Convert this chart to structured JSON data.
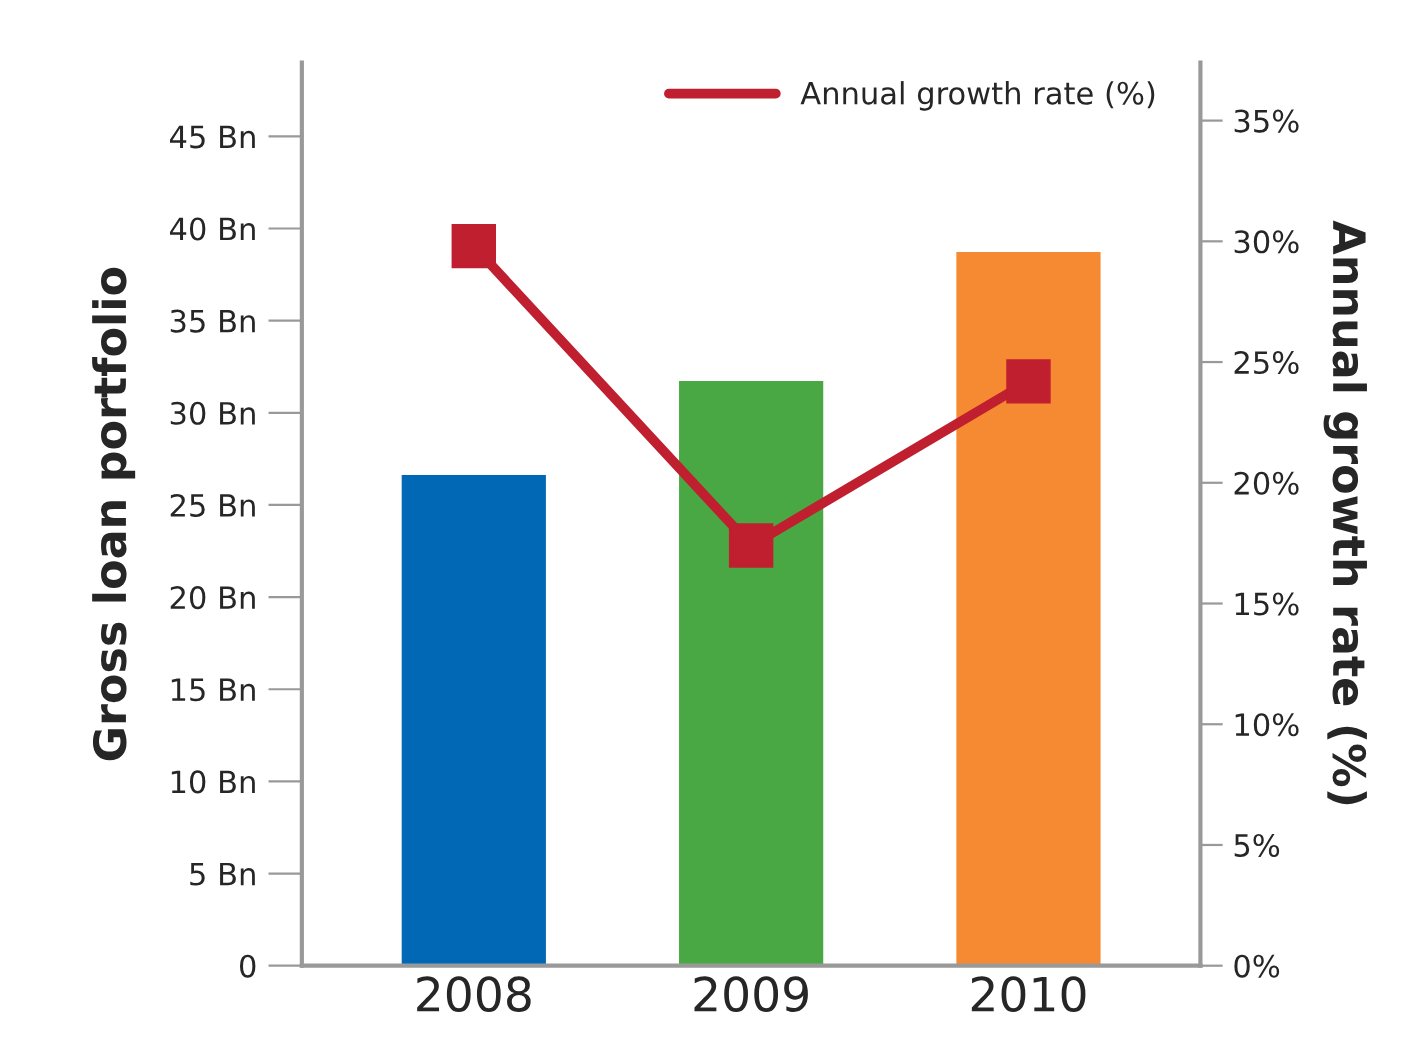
{
  "chart_data": {
    "type": "bar",
    "categories": [
      "2008",
      "2009",
      "2010"
    ],
    "ylabel": "Gross loan portfolio",
    "y2label": "Annual growth rate (%)",
    "series": [
      {
        "colors": [
          "#0068b4",
          "#4aa844",
          "#f68a32"
        ],
        "values": [
          26.7,
          31.8,
          38.8
        ]
      },
      {
        "type": "line",
        "name": "Annual growth rate (%)",
        "color": "#c01f2f",
        "axis": "y2",
        "marker": "square",
        "values": [
          29.8,
          17.4,
          24.2
        ]
      }
    ],
    "ylim": [
      0,
      49
    ],
    "yticks": [
      0,
      {
        "value": 5,
        "label": "5 Bn"
      },
      {
        "value": 10,
        "label": "10 Bn"
      },
      {
        "value": 15,
        "label": "15 Bn"
      },
      {
        "value": 20,
        "label": "20 Bn"
      },
      {
        "value": 25,
        "label": "25 Bn"
      },
      {
        "value": 30,
        "label": "30 Bn"
      },
      {
        "value": 35,
        "label": "35 Bn"
      },
      {
        "value": 40,
        "label": "40 Bn"
      },
      {
        "value": 45,
        "label": "45 Bn"
      }
    ],
    "y2lim": [
      0,
      37.4
    ],
    "y2ticks": [
      {
        "value": 0,
        "label": "0%"
      },
      {
        "value": 5,
        "label": "5%"
      },
      {
        "value": 10,
        "label": "10%"
      },
      {
        "value": 15,
        "label": "15%"
      },
      {
        "value": 20,
        "label": "20%"
      },
      {
        "value": 25,
        "label": "25%"
      },
      {
        "value": 30,
        "label": "30%"
      },
      {
        "value": 35,
        "label": "35%"
      }
    ],
    "grid": false,
    "legend": "top"
  }
}
